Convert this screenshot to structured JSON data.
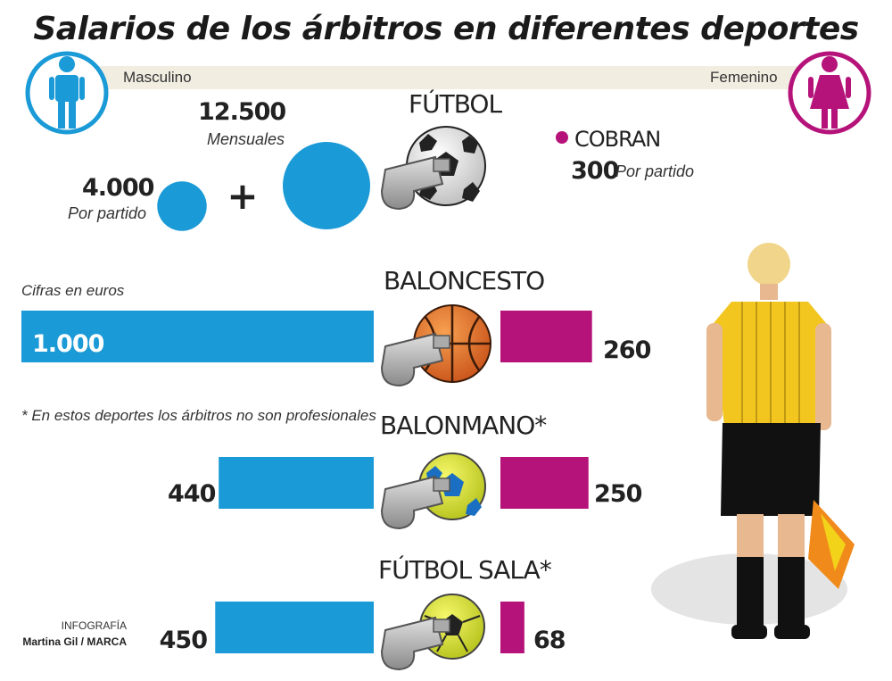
{
  "title": "Salarios de los árbitros en diferentes deportes",
  "labels": {
    "male": "Masculino",
    "female": "Femenino",
    "units_note": "Cifras en euros",
    "footnote": "* En estos deportes los árbitros no son profesionales",
    "credit_line1": "INFOGRAFÍA",
    "credit_line2": "Martina Gil / MARCA"
  },
  "colors": {
    "male": "#1a9ad6",
    "female": "#b5137a"
  },
  "icons": {
    "male": "man-icon",
    "female": "woman-icon",
    "whistle": "whistle-icon"
  },
  "chart_data": {
    "type": "bar",
    "title": "Salarios de los árbitros en diferentes deportes",
    "units": "euros",
    "futbol": {
      "label": "FÚTBOL",
      "male": {
        "per_match": {
          "value": 4000,
          "display": "4.000",
          "caption": "Por partido"
        },
        "plus": "+",
        "monthly": {
          "value": 12500,
          "display": "12.500",
          "caption": "Mensuales"
        }
      },
      "female": {
        "lead": "COBRAN",
        "value": 300,
        "display": "300",
        "caption": "Por partido"
      }
    },
    "categories": [
      "BALONCESTO",
      "BALONMANO*",
      "FÚTBOL SALA*"
    ],
    "series": [
      {
        "name": "Masculino",
        "values": [
          1000,
          440,
          450
        ],
        "display": [
          "1.000",
          "440",
          "450"
        ]
      },
      {
        "name": "Femenino",
        "values": [
          260,
          250,
          68
        ],
        "display": [
          "260",
          "250",
          "68"
        ]
      }
    ]
  }
}
